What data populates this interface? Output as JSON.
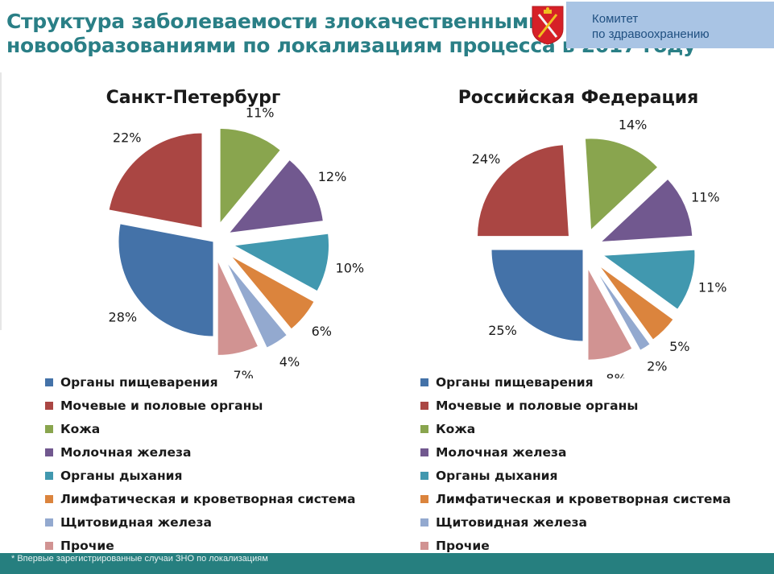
{
  "header": {
    "title_line1": "Структура заболеваемости злокачественными",
    "title_line2": "новообразованиями по локализациям процесса в 2017 году",
    "org_line1": "Комитет",
    "org_line2": "по здравоохранению"
  },
  "footnote": "* Впервые зарегистрированные случаи ЗНО по локализациям",
  "colors": {
    "Органы пищеварения": "#4472a8",
    "Мочевые и половые органы": "#aa4643",
    "Кожа": "#89a54e",
    "Молочная железа": "#71588f",
    "Органы дыхания": "#4198af",
    "Лимфатическая  и кроветворная система": "#db843d",
    "Щитовидная железа": "#93a9cf",
    "Прочие": "#d19392"
  },
  "chart_data": [
    {
      "type": "pie",
      "title": "Санкт-Петербург",
      "categories": [
        "Органы пищеварения",
        "Мочевые и половые органы",
        "Кожа",
        "Молочная железа",
        "Органы дыхания",
        "Лимфатическая  и кроветворная система",
        "Щитовидная железа",
        "Прочие"
      ],
      "values": [
        28,
        22,
        11,
        12,
        10,
        6,
        4,
        7
      ],
      "labels": [
        "28%",
        "22%",
        "11%",
        "12%",
        "10%",
        "6%",
        "4%",
        "7%"
      ],
      "exploded": true,
      "legend": "bottom"
    },
    {
      "type": "pie",
      "title": "Российская Федерация",
      "categories": [
        "Органы пищеварения",
        "Мочевые и половые органы",
        "Кожа",
        "Молочная железа",
        "Органы дыхания",
        "Лимфатическая  и кроветворная система",
        "Щитовидная железа",
        "Прочие"
      ],
      "values": [
        25,
        24,
        14,
        11,
        11,
        5,
        2,
        8
      ],
      "labels": [
        "25%",
        "24%",
        "14%",
        "11%",
        "11%",
        "5%",
        "2%",
        "8%"
      ],
      "exploded": true,
      "legend": "bottom"
    }
  ]
}
